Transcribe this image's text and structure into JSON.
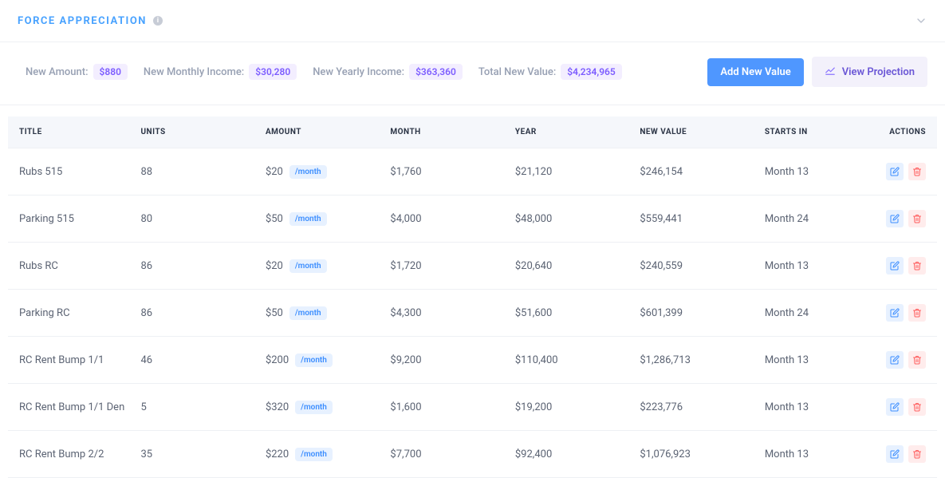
{
  "header": {
    "title": "FORCE APPRECIATION"
  },
  "summary": {
    "new_amount_label": "New Amount:",
    "new_amount_value": "$880",
    "new_monthly_label": "New Monthly Income:",
    "new_monthly_value": "$30,280",
    "new_yearly_label": "New Yearly Income:",
    "new_yearly_value": "$363,360",
    "total_new_label": "Total New Value:",
    "total_new_value": "$4,234,965"
  },
  "actions": {
    "add_new_value": "Add New Value",
    "view_projection": "View Projection"
  },
  "table": {
    "columns": {
      "title": "TITLE",
      "units": "UNITS",
      "amount": "AMOUNT",
      "month": "MONTH",
      "year": "YEAR",
      "new_value": "NEW VALUE",
      "starts_in": "STARTS IN",
      "actions": "ACTIONS"
    },
    "per_month_badge": "/month",
    "rows": [
      {
        "title": "Rubs 515",
        "units": "88",
        "amount": "$20",
        "month": "$1,760",
        "year": "$21,120",
        "new_value": "$246,154",
        "starts_in": "Month 13"
      },
      {
        "title": "Parking 515",
        "units": "80",
        "amount": "$50",
        "month": "$4,000",
        "year": "$48,000",
        "new_value": "$559,441",
        "starts_in": "Month 24"
      },
      {
        "title": "Rubs RC",
        "units": "86",
        "amount": "$20",
        "month": "$1,720",
        "year": "$20,640",
        "new_value": "$240,559",
        "starts_in": "Month 13"
      },
      {
        "title": "Parking RC",
        "units": "86",
        "amount": "$50",
        "month": "$4,300",
        "year": "$51,600",
        "new_value": "$601,399",
        "starts_in": "Month 24"
      },
      {
        "title": "RC Rent Bump 1/1",
        "units": "46",
        "amount": "$200",
        "month": "$9,200",
        "year": "$110,400",
        "new_value": "$1,286,713",
        "starts_in": "Month 13"
      },
      {
        "title": "RC Rent Bump 1/1 Den",
        "units": "5",
        "amount": "$320",
        "month": "$1,600",
        "year": "$19,200",
        "new_value": "$223,776",
        "starts_in": "Month 13"
      },
      {
        "title": "RC Rent Bump 2/2",
        "units": "35",
        "amount": "$220",
        "month": "$7,700",
        "year": "$92,400",
        "new_value": "$1,076,923",
        "starts_in": "Month 13"
      }
    ]
  },
  "colors": {
    "primary_button_bg": "#4f97ff",
    "secondary_button_bg": "#f3f1fb",
    "secondary_button_text": "#6b57d6",
    "pill_bg": "#f3eeff",
    "pill_text": "#7c5cff",
    "per_month_bg": "#e7f1ff",
    "per_month_text": "#3b8dff",
    "edit_bg": "#e7f1ff",
    "edit_color": "#3b8dff",
    "delete_bg": "#ffecec",
    "delete_color": "#ff5c5c",
    "title_color": "#4aa3ff",
    "header_row_bg": "#f5f7fb",
    "border": "#eef0f4",
    "label_muted": "#97a0b3",
    "text": "#5b6373"
  }
}
